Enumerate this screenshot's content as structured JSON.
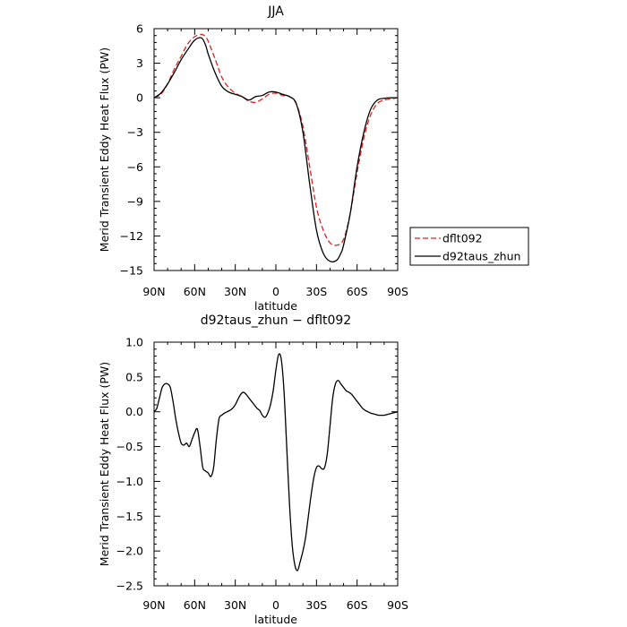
{
  "chart_data": [
    {
      "type": "line",
      "title": "JJA",
      "xlabel": "latitude",
      "ylabel": "Merid Transient Eddy Heat Flux (PW)",
      "xlim": [
        90,
        -90
      ],
      "ylim": [
        -15,
        6
      ],
      "xticks": [
        90,
        60,
        30,
        0,
        -30,
        -60,
        -90
      ],
      "xtick_labels": [
        "90N",
        "60N",
        "30N",
        "0",
        "30S",
        "60S",
        "90S"
      ],
      "yticks": [
        6,
        3,
        0,
        -3,
        -6,
        -9,
        -12,
        -15
      ],
      "ytick_labels": [
        "6",
        "3",
        "0",
        "−3",
        "−6",
        "−9",
        "−12",
        "−15"
      ],
      "legend": "outside-right",
      "series": [
        {
          "name": "dflt092",
          "color": "#dd2222",
          "dash": "dashed",
          "x": [
            90,
            85,
            80,
            75,
            70,
            65,
            60,
            55,
            52,
            50,
            45,
            40,
            35,
            30,
            25,
            20,
            15,
            10,
            5,
            0,
            -5,
            -10,
            -15,
            -20,
            -25,
            -30,
            -35,
            -40,
            -45,
            -50,
            -55,
            -60,
            -65,
            -70,
            -75,
            -80,
            -85,
            -90
          ],
          "y": [
            0,
            0.3,
            1.2,
            2.5,
            3.6,
            4.7,
            5.3,
            5.5,
            5.3,
            4.9,
            3.4,
            1.8,
            0.9,
            0.4,
            0.1,
            -0.3,
            -0.4,
            -0.1,
            0.3,
            0.4,
            0.2,
            0.1,
            -0.5,
            -2.5,
            -6,
            -9.5,
            -11.5,
            -12.6,
            -12.8,
            -12.3,
            -10,
            -6.5,
            -3.5,
            -1.5,
            -0.5,
            -0.2,
            -0.1,
            0
          ]
        },
        {
          "name": "d92taus_zhun",
          "color": "#000000",
          "dash": "solid",
          "x": [
            90,
            85,
            80,
            75,
            70,
            65,
            60,
            55,
            52,
            50,
            45,
            40,
            35,
            30,
            25,
            20,
            15,
            10,
            5,
            0,
            -5,
            -10,
            -15,
            -20,
            -25,
            -30,
            -35,
            -40,
            -45,
            -48,
            -50,
            -55,
            -60,
            -65,
            -70,
            -75,
            -80,
            -85,
            -90
          ],
          "y": [
            0,
            0.4,
            1.2,
            2.2,
            3.3,
            4.2,
            5,
            5.2,
            4.6,
            3.8,
            2.2,
            1,
            0.5,
            0.3,
            0.1,
            -0.2,
            0.1,
            0.2,
            0.5,
            0.5,
            0.3,
            0.1,
            -0.5,
            -3,
            -7.5,
            -11.5,
            -13.5,
            -14.2,
            -14.1,
            -13.5,
            -12.8,
            -10,
            -6,
            -3,
            -1,
            -0.2,
            -0.05,
            0,
            0
          ]
        }
      ]
    },
    {
      "type": "line",
      "title": "d92taus_zhun − dflt092",
      "xlabel": "latitude",
      "ylabel": "Merid Transient Eddy Heat Flux (PW)",
      "xlim": [
        90,
        -90
      ],
      "ylim": [
        -2.5,
        1.0
      ],
      "xticks": [
        90,
        60,
        30,
        0,
        -30,
        -60,
        -90
      ],
      "xtick_labels": [
        "90N",
        "60N",
        "30N",
        "0",
        "30S",
        "60S",
        "90S"
      ],
      "yticks": [
        1.0,
        0.5,
        0.0,
        -0.5,
        -1.0,
        -1.5,
        -2.0,
        -2.5
      ],
      "ytick_labels": [
        "1.0",
        "0.5",
        "0.0",
        "−0.5",
        "−1.0",
        "−1.5",
        "−2.0",
        "−2.5"
      ],
      "series": [
        {
          "color": "#000000",
          "dash": "solid",
          "x": [
            90,
            88,
            86,
            84,
            82,
            80,
            78,
            76,
            74,
            72,
            70,
            68,
            66,
            64,
            62,
            60,
            58,
            56,
            54,
            52,
            50,
            48,
            46,
            44,
            42,
            40,
            38,
            36,
            34,
            32,
            30,
            28,
            26,
            24,
            22,
            20,
            18,
            16,
            14,
            12,
            10,
            8,
            6,
            4,
            2,
            0,
            -2,
            -4,
            -6,
            -8,
            -10,
            -12,
            -14,
            -16,
            -18,
            -20,
            -22,
            -24,
            -26,
            -28,
            -30,
            -32,
            -34,
            -36,
            -38,
            -40,
            -42,
            -44,
            -46,
            -48,
            -50,
            -52,
            -54,
            -56,
            -58,
            -60,
            -62,
            -64,
            -66,
            -68,
            -70,
            -72,
            -74,
            -76,
            -78,
            -80,
            -82,
            -84,
            -86,
            -88,
            -90
          ],
          "y": [
            0,
            0.05,
            0.2,
            0.35,
            0.4,
            0.4,
            0.35,
            0.15,
            -0.1,
            -0.3,
            -0.45,
            -0.48,
            -0.45,
            -0.5,
            -0.4,
            -0.3,
            -0.25,
            -0.5,
            -0.8,
            -0.85,
            -0.88,
            -0.93,
            -0.8,
            -0.4,
            -0.1,
            -0.05,
            -0.02,
            0,
            0.02,
            0.05,
            0.1,
            0.18,
            0.25,
            0.28,
            0.25,
            0.2,
            0.15,
            0.1,
            0.05,
            0.02,
            -0.05,
            -0.08,
            -0.02,
            0.1,
            0.3,
            0.6,
            0.82,
            0.75,
            0.3,
            -0.5,
            -1.3,
            -1.9,
            -2.2,
            -2.28,
            -2.15,
            -2.0,
            -1.8,
            -1.5,
            -1.2,
            -0.95,
            -0.8,
            -0.78,
            -0.82,
            -0.8,
            -0.6,
            -0.2,
            0.2,
            0.4,
            0.45,
            0.4,
            0.35,
            0.3,
            0.28,
            0.25,
            0.2,
            0.15,
            0.1,
            0.05,
            0.02,
            0,
            -0.02,
            -0.03,
            -0.04,
            -0.05,
            -0.05,
            -0.05,
            -0.04,
            -0.03,
            -0.02,
            -0.01,
            0
          ]
        }
      ]
    }
  ]
}
